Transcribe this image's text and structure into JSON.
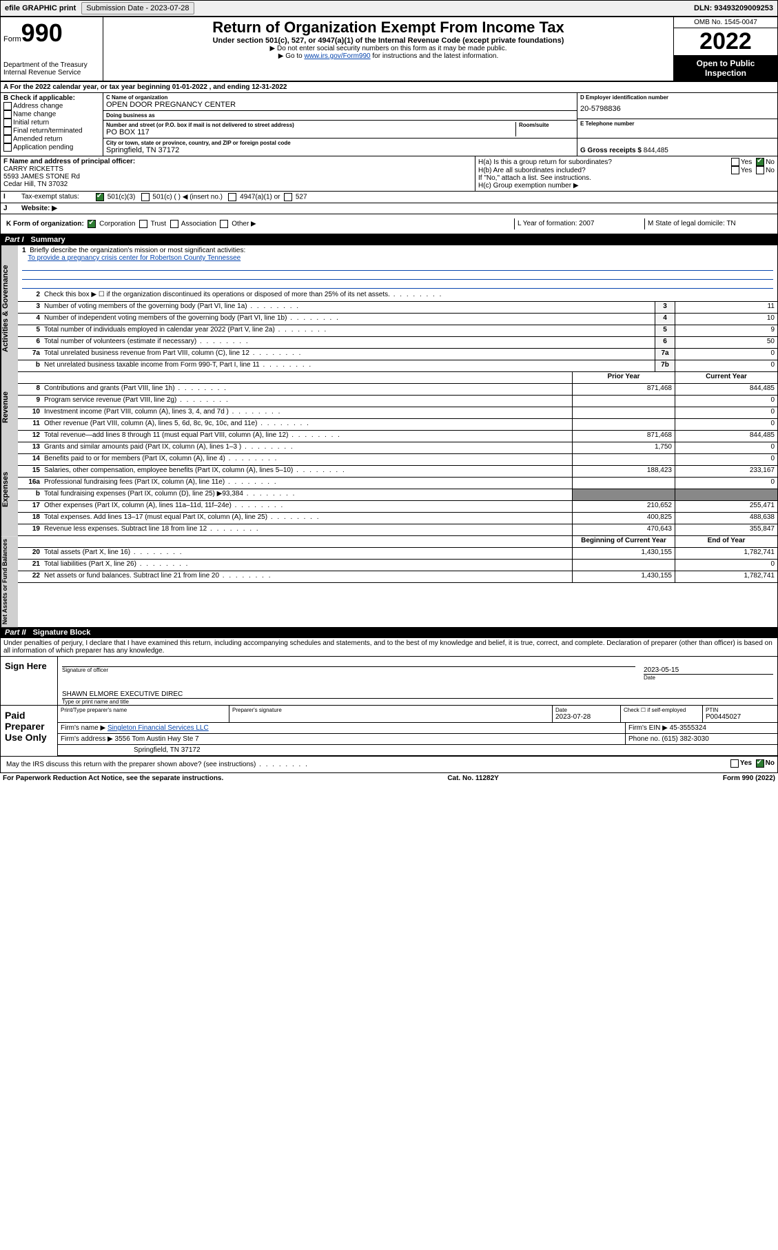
{
  "topbar": {
    "efile": "efile GRAPHIC print",
    "subdate_label": "Submission Date - 2023-07-28",
    "dln": "DLN: 93493209009253"
  },
  "header": {
    "form_prefix": "Form",
    "form_num": "990",
    "dept": "Department of the Treasury",
    "irs": "Internal Revenue Service",
    "title": "Return of Organization Exempt From Income Tax",
    "sub1": "Under section 501(c), 527, or 4947(a)(1) of the Internal Revenue Code (except private foundations)",
    "sub2": "▶ Do not enter social security numbers on this form as it may be made public.",
    "sub3_pre": "▶ Go to ",
    "sub3_link": "www.irs.gov/Form990",
    "sub3_post": " for instructions and the latest information.",
    "omb": "OMB No. 1545-0047",
    "year": "2022",
    "open": "Open to Public Inspection"
  },
  "rowA": "A For the 2022 calendar year, or tax year beginning 01-01-2022    , and ending 12-31-2022",
  "colB": {
    "hdr": "B Check if applicable:",
    "items": [
      "Address change",
      "Name change",
      "Initial return",
      "Final return/terminated",
      "Amended return",
      "Application pending"
    ]
  },
  "colC": {
    "name_lab": "C Name of organization",
    "name": "OPEN DOOR PREGNANCY CENTER",
    "dba_lab": "Doing business as",
    "dba": "",
    "addr_lab": "Number and street (or P.O. box if mail is not delivered to street address)",
    "room_lab": "Room/suite",
    "addr": "PO BOX 117",
    "city_lab": "City or town, state or province, country, and ZIP or foreign postal code",
    "city": "Springfield, TN  37172"
  },
  "colD": {
    "ein_lab": "D Employer identification number",
    "ein": "20-5798836",
    "tel_lab": "E Telephone number",
    "tel": "",
    "gross_lab": "G Gross receipts $",
    "gross": "844,485"
  },
  "rowF": {
    "lab": "F  Name and address of principal officer:",
    "name": "CARRY RICKETTS",
    "addr1": "5593 JAMES STONE Rd",
    "addr2": "Cedar Hill, TN  37032"
  },
  "rowH": {
    "ha": "H(a)  Is this a group return for subordinates?",
    "hb": "H(b)  Are all subordinates included?",
    "hb_note": "If \"No,\" attach a list. See instructions.",
    "hc": "H(c)  Group exemption number ▶",
    "yes": "Yes",
    "no": "No"
  },
  "rowI": {
    "lab": "Tax-exempt status:",
    "opt1": "501(c)(3)",
    "opt2": "501(c) (   ) ◀ (insert no.)",
    "opt3": "4947(a)(1) or",
    "opt4": "527"
  },
  "rowJ": {
    "lab": "Website: ▶",
    "val": ""
  },
  "rowK": {
    "lab": "K Form of organization:",
    "opts": [
      "Corporation",
      "Trust",
      "Association",
      "Other ▶"
    ],
    "L": "L Year of formation: 2007",
    "M": "M State of legal domicile: TN"
  },
  "part1": {
    "label": "Part I",
    "title": "Summary"
  },
  "mission": {
    "q": "Briefly describe the organization's mission or most significant activities:",
    "a": "To provide a pregnancy crisis center for Robertson County Tennessee"
  },
  "lines_gov": [
    {
      "n": "2",
      "d": "Check this box ▶ ☐  if the organization discontinued its operations or disposed of more than 25% of its net assets."
    },
    {
      "n": "3",
      "d": "Number of voting members of the governing body (Part VI, line 1a)",
      "box": "3",
      "v": "11"
    },
    {
      "n": "4",
      "d": "Number of independent voting members of the governing body (Part VI, line 1b)",
      "box": "4",
      "v": "10"
    },
    {
      "n": "5",
      "d": "Total number of individuals employed in calendar year 2022 (Part V, line 2a)",
      "box": "5",
      "v": "9"
    },
    {
      "n": "6",
      "d": "Total number of volunteers (estimate if necessary)",
      "box": "6",
      "v": "50"
    },
    {
      "n": "7a",
      "d": "Total unrelated business revenue from Part VIII, column (C), line 12",
      "box": "7a",
      "v": "0"
    },
    {
      "n": "b",
      "d": "Net unrelated business taxable income from Form 990-T, Part I, line 11",
      "box": "7b",
      "v": "0"
    }
  ],
  "colhdr": {
    "py": "Prior Year",
    "cy": "Current Year"
  },
  "lines_rev": [
    {
      "n": "8",
      "d": "Contributions and grants (Part VIII, line 1h)",
      "py": "871,468",
      "cy": "844,485"
    },
    {
      "n": "9",
      "d": "Program service revenue (Part VIII, line 2g)",
      "py": "",
      "cy": "0"
    },
    {
      "n": "10",
      "d": "Investment income (Part VIII, column (A), lines 3, 4, and 7d )",
      "py": "",
      "cy": "0"
    },
    {
      "n": "11",
      "d": "Other revenue (Part VIII, column (A), lines 5, 6d, 8c, 9c, 10c, and 11e)",
      "py": "",
      "cy": "0"
    },
    {
      "n": "12",
      "d": "Total revenue—add lines 8 through 11 (must equal Part VIII, column (A), line 12)",
      "py": "871,468",
      "cy": "844,485"
    }
  ],
  "lines_exp": [
    {
      "n": "13",
      "d": "Grants and similar amounts paid (Part IX, column (A), lines 1–3 )",
      "py": "1,750",
      "cy": "0"
    },
    {
      "n": "14",
      "d": "Benefits paid to or for members (Part IX, column (A), line 4)",
      "py": "",
      "cy": "0"
    },
    {
      "n": "15",
      "d": "Salaries, other compensation, employee benefits (Part IX, column (A), lines 5–10)",
      "py": "188,423",
      "cy": "233,167"
    },
    {
      "n": "16a",
      "d": "Professional fundraising fees (Part IX, column (A), line 11e)",
      "py": "",
      "cy": "0"
    },
    {
      "n": "b",
      "d": "Total fundraising expenses (Part IX, column (D), line 25) ▶93,384",
      "py": "grey",
      "cy": "grey"
    },
    {
      "n": "17",
      "d": "Other expenses (Part IX, column (A), lines 11a–11d, 11f–24e)",
      "py": "210,652",
      "cy": "255,471"
    },
    {
      "n": "18",
      "d": "Total expenses. Add lines 13–17 (must equal Part IX, column (A), line 25)",
      "py": "400,825",
      "cy": "488,638"
    },
    {
      "n": "19",
      "d": "Revenue less expenses. Subtract line 18 from line 12",
      "py": "470,643",
      "cy": "355,847"
    }
  ],
  "colhdr2": {
    "py": "Beginning of Current Year",
    "cy": "End of Year"
  },
  "lines_net": [
    {
      "n": "20",
      "d": "Total assets (Part X, line 16)",
      "py": "1,430,155",
      "cy": "1,782,741"
    },
    {
      "n": "21",
      "d": "Total liabilities (Part X, line 26)",
      "py": "",
      "cy": "0"
    },
    {
      "n": "22",
      "d": "Net assets or fund balances. Subtract line 21 from line 20",
      "py": "1,430,155",
      "cy": "1,782,741"
    }
  ],
  "vtabs": {
    "gov": "Activities & Governance",
    "rev": "Revenue",
    "exp": "Expenses",
    "net": "Net Assets or Fund Balances"
  },
  "part2": {
    "label": "Part II",
    "title": "Signature Block"
  },
  "perjury": "Under penalties of perjury, I declare that I have examined this return, including accompanying schedules and statements, and to the best of my knowledge and belief, it is true, correct, and complete. Declaration of preparer (other than officer) is based on all information of which preparer has any knowledge.",
  "sign": {
    "here": "Sign Here",
    "sig_lab": "Signature of officer",
    "date_lab": "Date",
    "date": "2023-05-15",
    "name": "SHAWN ELMORE  EXECUTIVE DIREC",
    "name_lab": "Type or print name and title"
  },
  "paid": {
    "title": "Paid Preparer Use Only",
    "h1": "Print/Type preparer's name",
    "h2": "Preparer's signature",
    "h3": "Date",
    "date": "2023-07-28",
    "h4": "Check ☐ if self-employed",
    "h5": "PTIN",
    "ptin": "P00445027",
    "firm_lab": "Firm's name    ▶",
    "firm": "Singleton Financial Services LLC",
    "ein_lab": "Firm's EIN ▶",
    "ein": "45-3555324",
    "addr_lab": "Firm's address ▶",
    "addr1": "3556 Tom Austin Hwy Ste 7",
    "addr2": "Springfield, TN  37172",
    "phone_lab": "Phone no.",
    "phone": "(615) 382-3030"
  },
  "discuss": "May the IRS discuss this return with the preparer shown above? (see instructions)",
  "footer": {
    "left": "For Paperwork Reduction Act Notice, see the separate instructions.",
    "mid": "Cat. No. 11282Y",
    "right": "Form 990 (2022)"
  }
}
